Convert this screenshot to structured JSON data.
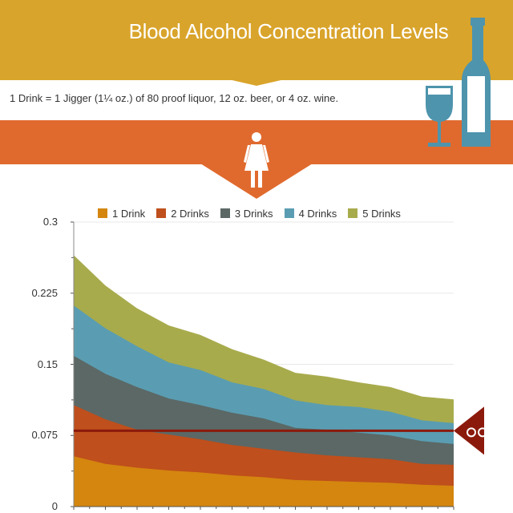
{
  "header": {
    "title": "Blood Alcohol Concentration Levels",
    "subtitle": "1 Drink = 1 Jigger (1¼ oz.) of 80 proof liquor, 12 oz. beer, or 4 oz. wine."
  },
  "icons": [
    "wine-bottle-icon",
    "wine-glass-icon",
    "woman-icon",
    "handcuffs-icon"
  ],
  "colors": {
    "header": "#d9a42b",
    "band": "#e06a2e",
    "icon_blue": "#4e94ad",
    "limit_line": "#8b1a0c"
  },
  "chart_data": {
    "type": "area",
    "ylim": [
      0,
      0.3
    ],
    "yticks": [
      "0",
      "0.075",
      "0.15",
      "0.225",
      "0.3"
    ],
    "grid": true,
    "legend_placement": "top",
    "x_points": 13,
    "series": [
      {
        "name": "1 Drink",
        "color": "#d4860f",
        "values": [
          0.053,
          0.045,
          0.041,
          0.038,
          0.036,
          0.033,
          0.031,
          0.028,
          0.027,
          0.026,
          0.025,
          0.023,
          0.022
        ]
      },
      {
        "name": "2 Drinks",
        "color": "#bf4f1c",
        "values": [
          0.107,
          0.092,
          0.081,
          0.076,
          0.071,
          0.065,
          0.061,
          0.057,
          0.054,
          0.052,
          0.05,
          0.045,
          0.044
        ]
      },
      {
        "name": "3 Drinks",
        "color": "#5b6866",
        "values": [
          0.159,
          0.14,
          0.126,
          0.114,
          0.107,
          0.099,
          0.093,
          0.083,
          0.081,
          0.078,
          0.075,
          0.069,
          0.066
        ]
      },
      {
        "name": "4 Drinks",
        "color": "#5a9db2",
        "values": [
          0.212,
          0.188,
          0.169,
          0.152,
          0.144,
          0.131,
          0.124,
          0.112,
          0.107,
          0.105,
          0.1,
          0.091,
          0.088
        ]
      },
      {
        "name": "5 Drinks",
        "color": "#a8ab4c",
        "values": [
          0.265,
          0.233,
          0.209,
          0.191,
          0.181,
          0.166,
          0.155,
          0.141,
          0.137,
          0.131,
          0.126,
          0.116,
          0.113
        ]
      }
    ],
    "reference_line": {
      "value": 0.08,
      "color": "#8b1a0c"
    }
  }
}
